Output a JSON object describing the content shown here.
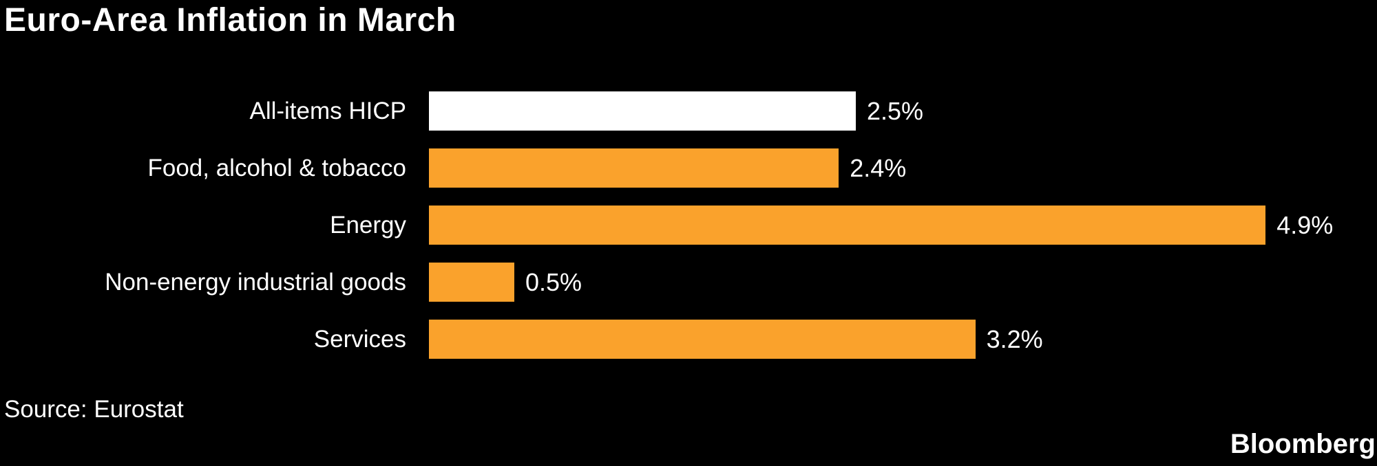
{
  "title": "Euro-Area Inflation in March",
  "source": "Source: Eurostat",
  "brand": "Bloomberg",
  "colors": {
    "background": "#000000",
    "text": "#FFFFFF",
    "highlight_bar": "#FFFFFF",
    "default_bar": "#FAA22C"
  },
  "chart_data": {
    "type": "bar",
    "orientation": "horizontal",
    "title": "Euro-Area Inflation in March",
    "xlabel": "",
    "ylabel": "",
    "categories": [
      "All-items HICP",
      "Food, alcohol & tobacco",
      "Energy",
      "Non-energy industrial goods",
      "Services"
    ],
    "values": [
      2.5,
      2.4,
      4.9,
      0.5,
      3.2
    ],
    "value_labels": [
      "2.5%",
      "2.4%",
      "4.9%",
      "0.5%",
      "3.2%"
    ],
    "bar_colors": [
      "#FFFFFF",
      "#FAA22C",
      "#FAA22C",
      "#FAA22C",
      "#FAA22C"
    ],
    "xlim": [
      0,
      5.5
    ],
    "grid": false,
    "legend": null,
    "source_note": "Source: Eurostat",
    "brand": "Bloomberg"
  }
}
